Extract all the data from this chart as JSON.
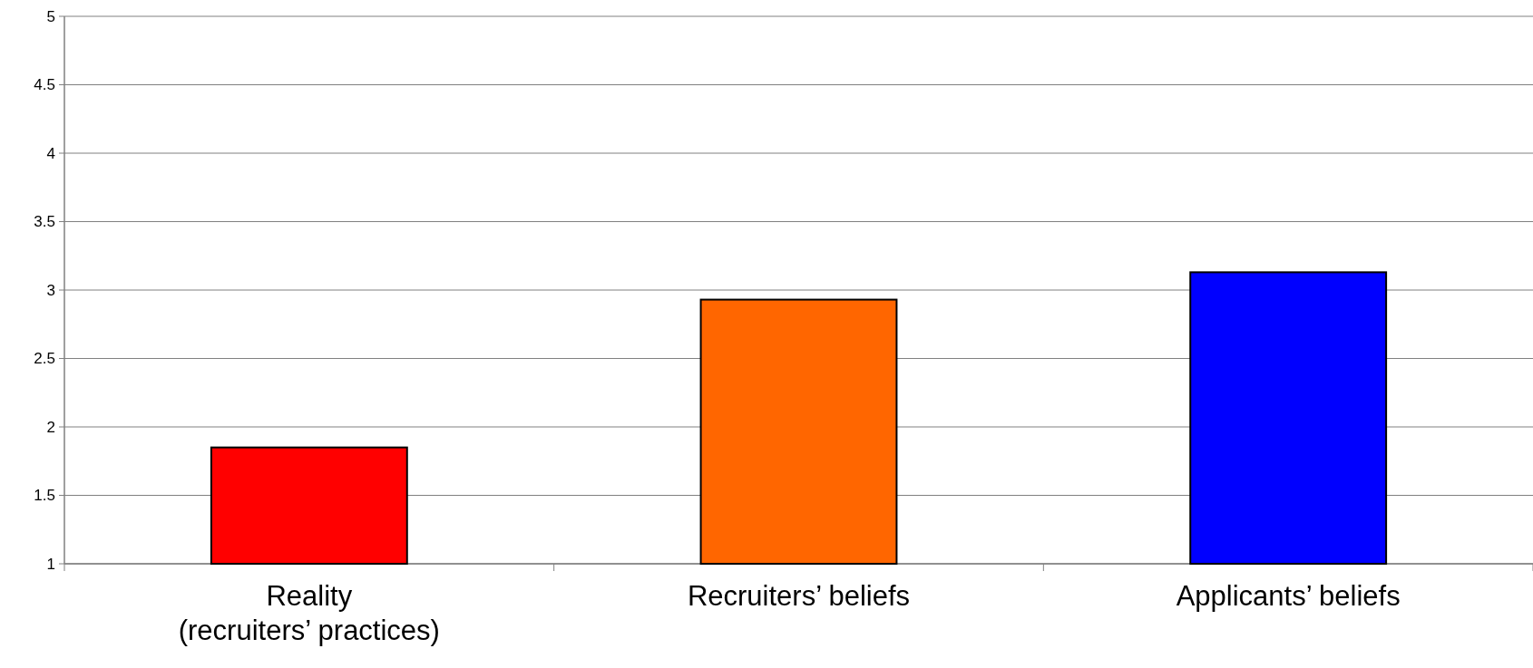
{
  "chart_data": {
    "type": "bar",
    "categories": [
      "Reality\n(recruiters’ practices)",
      "Recruiters’ beliefs",
      "Applicants’ beliefs"
    ],
    "values": [
      1.85,
      2.93,
      3.13
    ],
    "colors": [
      "#ff0000",
      "#ff6600",
      "#0000ff"
    ],
    "ylim": [
      1,
      5
    ],
    "yticks": [
      1,
      1.5,
      2,
      2.5,
      3,
      3.5,
      4,
      4.5,
      5
    ],
    "grid": "y"
  }
}
